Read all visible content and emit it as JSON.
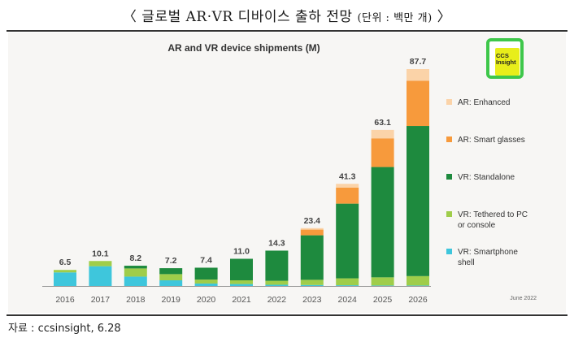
{
  "heading": {
    "main": "〈 글로벌 AR·VR 디바이스 출하 전망",
    "unit": "(단위 : 백만 개)",
    "close": "〉"
  },
  "source": "자료 : ccsinsight, 6.28",
  "logo": {
    "line1": "CCS",
    "line2": "Insight"
  },
  "footnote": "June 2022",
  "colors": {
    "vr_smartphone": "#3ec6dc",
    "vr_tethered": "#9fcd4a",
    "vr_standalone": "#1e8a3e",
    "ar_smart_glasses": "#f79a3c",
    "ar_enhanced": "#fbd3a8"
  },
  "chart_data": {
    "type": "bar",
    "stacked": true,
    "title": "AR and VR device shipments (M)",
    "xlabel": "",
    "ylabel": "",
    "ylim": [
      0,
      90
    ],
    "categories": [
      "2016",
      "2017",
      "2018",
      "2019",
      "2020",
      "2021",
      "2022",
      "2023",
      "2024",
      "2025",
      "2026"
    ],
    "totals": [
      6.5,
      10.1,
      8.2,
      7.2,
      7.4,
      11.0,
      14.3,
      23.4,
      41.3,
      63.1,
      87.7
    ],
    "total_labels": [
      "6.5",
      "10.1",
      "8.2",
      "7.2",
      "7.4",
      "11.0",
      "14.3",
      "23.4",
      "41.3",
      "63.1",
      "87.7"
    ],
    "series": [
      {
        "name": "VR: Smartphone shell",
        "color": "#3ec6dc",
        "values": [
          5.5,
          8.0,
          3.8,
          2.3,
          1.0,
          0.8,
          0.5,
          0.4,
          0.3,
          0.2,
          0.2
        ]
      },
      {
        "name": "VR: Tethered to PC or console",
        "color": "#9fcd4a",
        "values": [
          1.0,
          2.1,
          3.3,
          2.5,
          1.6,
          1.5,
          1.6,
          2.1,
          2.8,
          3.3,
          3.8
        ]
      },
      {
        "name": "VR: Standalone",
        "color": "#1e8a3e",
        "values": [
          0.0,
          0.0,
          1.1,
          2.4,
          4.8,
          8.7,
          12.2,
          18.0,
          30.2,
          44.6,
          60.7
        ]
      },
      {
        "name": "AR: Smart glasses",
        "color": "#f79a3c",
        "values": [
          0.0,
          0.0,
          0.0,
          0.0,
          0.0,
          0.0,
          0.0,
          2.3,
          6.5,
          11.6,
          18.3
        ]
      },
      {
        "name": "AR: Enhanced",
        "color": "#fbd3a8",
        "values": [
          0.0,
          0.0,
          0.0,
          0.0,
          0.0,
          0.0,
          0.0,
          0.6,
          1.5,
          3.4,
          4.7
        ]
      }
    ],
    "legend": [
      {
        "label": "AR: Enhanced",
        "color": "#fbd3a8"
      },
      {
        "label": "AR: Smart glasses",
        "color": "#f79a3c"
      },
      {
        "label": "VR: Standalone",
        "color": "#1e8a3e"
      },
      {
        "label": "VR: Tethered to PC",
        "label2": "or console",
        "color": "#9fcd4a"
      },
      {
        "label": "VR: Smartphone",
        "label2": "shell",
        "color": "#3ec6dc"
      }
    ],
    "legend_position": "right"
  }
}
